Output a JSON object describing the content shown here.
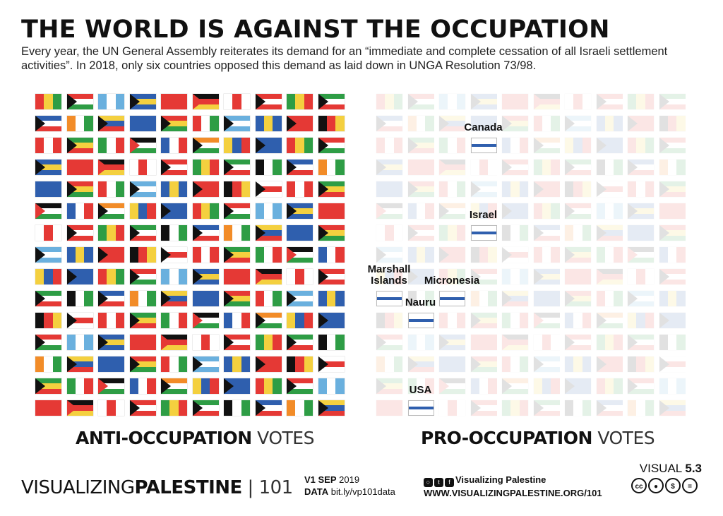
{
  "title": "THE WORLD IS AGAINST THE OCCUPATION",
  "subtitle": "Every year, the UN General Assembly reiterates its demand for an “immediate and complete cessation of all Israeli settlement activities”.  In 2018, only six countries opposed this demand as laid down in UNGA Resolution 73/98.",
  "left_label_bold": "ANTI-OCCUPATION",
  "left_label_light": " VOTES",
  "right_label_bold": "PRO-OCCUPATION",
  "right_label_light": " VOTES",
  "highlighted": [
    {
      "label": "Canada",
      "row": 2,
      "col": 3
    },
    {
      "label": "Israel",
      "row": 6,
      "col": 3
    },
    {
      "label": "Marshall\nIslands",
      "row": 9,
      "col": 0
    },
    {
      "label": "Nauru",
      "row": 10,
      "col": 1
    },
    {
      "label": "Micronesia",
      "row": 9,
      "col": 2
    },
    {
      "label": "USA",
      "row": 14,
      "col": 1
    }
  ],
  "footer": {
    "brand_light": "VISUALIZING",
    "brand_bold": "PALESTINE",
    "brand_sep": " | 101",
    "version_prefix": "V1 ",
    "version_bold": "SEP",
    "version_year": " 2019",
    "data_bold": "DATA",
    "data_link": " bit.ly/vp101data",
    "social_name": "Visualizing Palestine",
    "website_prefix": "WWW.",
    "website_bold": "VISUALIZINGPALESTINE",
    "website_suffix": ".ORG/101",
    "visual_prefix": "VISUAL ",
    "visual_number": "5.3"
  },
  "colors": {
    "red": "#e53935",
    "green": "#2e9d45",
    "blue": "#2f5fae",
    "yellow": "#f4d03f",
    "black": "#111111",
    "white": "#ffffff"
  }
}
